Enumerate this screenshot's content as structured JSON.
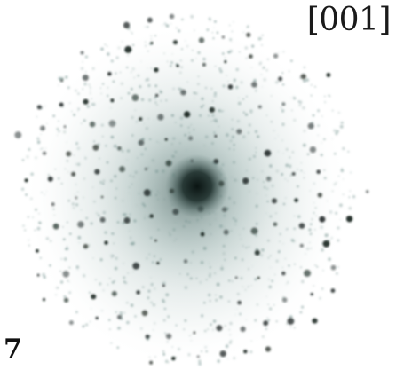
{
  "figure": {
    "zone_axis_label": "[001]",
    "panel_label": "7",
    "colors": {
      "background": "#ffffff",
      "halo": "#6f8f8b",
      "spots": "#17221f",
      "labels": "#1a1a1a"
    },
    "content": "electron-diffraction-pattern-icon"
  }
}
